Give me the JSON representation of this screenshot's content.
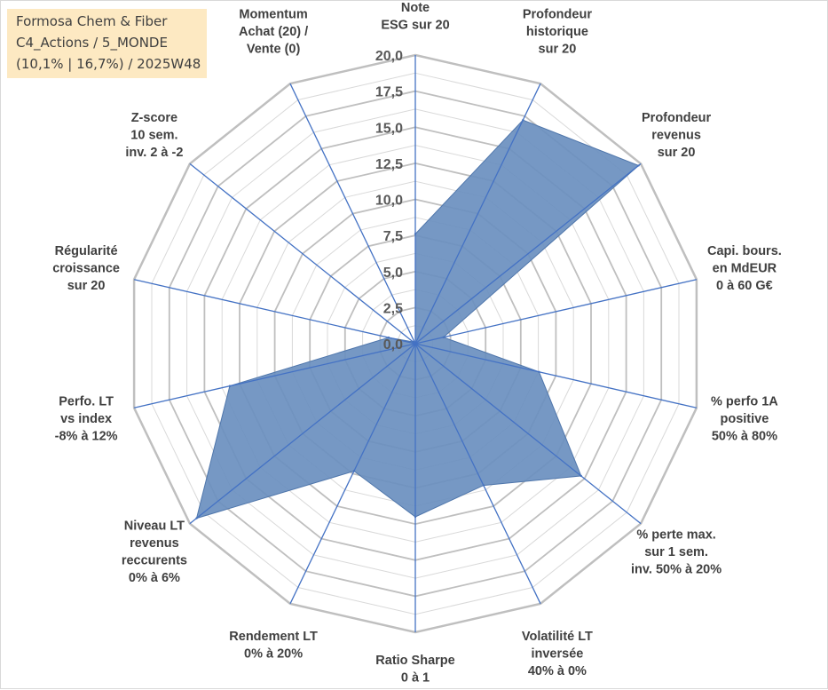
{
  "info_box": {
    "line1": "Formosa Chem & Fiber",
    "line2": "C4_Actions / 5_MONDE",
    "line3": "(10,1% | 16,7%) / 2025W48"
  },
  "colors": {
    "fill": "#6a8fbf",
    "stroke": "#4f76ab",
    "spoke": "#4472c4",
    "ring": "#bfbfbf",
    "inner_grid": "#d9d9d9",
    "box_bg": "#fde9c2"
  },
  "chart_data": {
    "type": "radar",
    "rmax": 20,
    "tick_labels": [
      "0,0",
      "2,5",
      "5,0",
      "7,5",
      "10,0",
      "12,5",
      "15,0",
      "17,5",
      "20,0"
    ],
    "tick_values": [
      0,
      2.5,
      5,
      7.5,
      10,
      12.5,
      15,
      17.5,
      20
    ],
    "grid": true,
    "axes": [
      {
        "lines": [
          "Note",
          "ESG sur 20"
        ],
        "value": 7.6
      },
      {
        "lines": [
          "Profondeur",
          "historique",
          "sur 20"
        ],
        "value": 17.2
      },
      {
        "lines": [
          "Profondeur",
          "revenus",
          "sur 20"
        ],
        "value": 19.8
      },
      {
        "lines": [
          "Capi. bours.",
          "en MdEUR",
          "0 à 60 G€"
        ],
        "value": 2.0
      },
      {
        "lines": [
          "% perfo 1A",
          "positive",
          "50% à 80%"
        ],
        "value": 8.8
      },
      {
        "lines": [
          "% perte max.",
          "sur 1 sem.",
          "inv. 50% à 20%"
        ],
        "value": 14.7
      },
      {
        "lines": [
          "Volatilité LT",
          "inversée",
          "40% à 0%"
        ],
        "value": 10.9
      },
      {
        "lines": [
          "Ratio Sharpe",
          "0 à 1"
        ],
        "value": 12.0
      },
      {
        "lines": [
          "Rendement LT",
          "0% à 20%"
        ],
        "value": 9.8
      },
      {
        "lines": [
          "Niveau LT",
          "revenus",
          "reccurents",
          "0% à 6%"
        ],
        "value": 19.4
      },
      {
        "lines": [
          "Perfo. LT",
          "vs index",
          "-8% à 12%"
        ],
        "value": 13.2
      },
      {
        "lines": [
          "Régularité",
          "croissance",
          "sur 20"
        ],
        "value": 1.9
      },
      {
        "lines": [
          "Z-score",
          "10 sem.",
          "inv. 2 à -2"
        ],
        "value": 0.2
      },
      {
        "lines": [
          "Momentum",
          "Achat (20) /",
          "Vente (0)"
        ],
        "value": 0.0
      }
    ]
  }
}
